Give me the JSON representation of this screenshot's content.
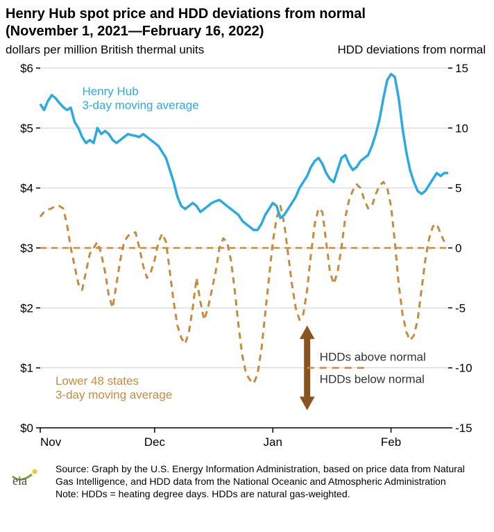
{
  "title_line1": "Henry Hub spot price and HDD deviations from normal",
  "title_line2": "(November 1, 2021—February 16, 2022)",
  "left_axis_label": "dollars per million British thermal units",
  "right_axis_label": "HDD deviations from normal",
  "footer_source": "Source: Graph by the U.S. Energy Information Administration, based on price data from Natural Gas Intelligence, and HDD data from the National Oceanic and Atmospheric Administration",
  "footer_note": "Note: HDDs = heating degree days. HDDs are natural gas-weighted.",
  "annotations": {
    "henry_hub_l1": "Henry Hub",
    "henry_hub_l2": "3-day moving average",
    "lower48_l1": "Lower 48 states",
    "lower48_l2": "3-day moving average",
    "hdd_above": "HDDs above normal",
    "hdd_below": "HDDs below normal"
  },
  "colors": {
    "henry_hub": "#29abe2",
    "hdd": "#c98a3c",
    "arrow": "#8a541e",
    "grid": "#cfcfcf",
    "axis": "#000000",
    "text": "#000000",
    "bg": "#ffffff"
  },
  "styles": {
    "henry_hub_line_width": 3.5,
    "hdd_line_width": 3.0,
    "hdd_dash": "9 7",
    "zero_line_dash": "9 7",
    "tick_fontsize": 17,
    "title_fontsize": 20,
    "annotation_fontsize": 17,
    "footer_fontsize": 14
  },
  "x_axis": {
    "ticks": [
      "Nov",
      "Dec",
      "Jan",
      "Feb"
    ],
    "tick_positions_days": [
      0,
      30,
      61,
      92
    ],
    "range_days": [
      0,
      107
    ]
  },
  "left_y_axis": {
    "ticks": [
      "$0",
      "$1",
      "$2",
      "$3",
      "$4",
      "$5",
      "$6"
    ],
    "tick_values": [
      0,
      1,
      2,
      3,
      4,
      5,
      6
    ],
    "range": [
      0,
      6
    ]
  },
  "right_y_axis": {
    "ticks": [
      "-15",
      "-10",
      "-5",
      "0",
      "5",
      "10",
      "15"
    ],
    "tick_values": [
      -15,
      -10,
      -5,
      0,
      5,
      10,
      15
    ],
    "range": [
      -15,
      15
    ]
  },
  "series": {
    "henry_hub": {
      "type": "line",
      "axis": "left",
      "data": [
        [
          0,
          5.4
        ],
        [
          1,
          5.3
        ],
        [
          2,
          5.45
        ],
        [
          3,
          5.55
        ],
        [
          4,
          5.5
        ],
        [
          5,
          5.42
        ],
        [
          6,
          5.35
        ],
        [
          7,
          5.3
        ],
        [
          8,
          5.34
        ],
        [
          9,
          5.1
        ],
        [
          10,
          5.0
        ],
        [
          11,
          4.85
        ],
        [
          12,
          4.75
        ],
        [
          13,
          4.8
        ],
        [
          14,
          4.75
        ],
        [
          15,
          5.0
        ],
        [
          16,
          4.9
        ],
        [
          17,
          4.95
        ],
        [
          18,
          4.9
        ],
        [
          19,
          4.8
        ],
        [
          20,
          4.75
        ],
        [
          21,
          4.8
        ],
        [
          22,
          4.85
        ],
        [
          23,
          4.9
        ],
        [
          24,
          4.88
        ],
        [
          25,
          4.87
        ],
        [
          26,
          4.85
        ],
        [
          27,
          4.9
        ],
        [
          28,
          4.85
        ],
        [
          29,
          4.8
        ],
        [
          30,
          4.75
        ],
        [
          31,
          4.7
        ],
        [
          32,
          4.6
        ],
        [
          33,
          4.5
        ],
        [
          34,
          4.3
        ],
        [
          35,
          4.1
        ],
        [
          36,
          3.85
        ],
        [
          37,
          3.7
        ],
        [
          38,
          3.65
        ],
        [
          39,
          3.7
        ],
        [
          40,
          3.75
        ],
        [
          41,
          3.7
        ],
        [
          42,
          3.6
        ],
        [
          43,
          3.65
        ],
        [
          44,
          3.7
        ],
        [
          45,
          3.75
        ],
        [
          46,
          3.78
        ],
        [
          47,
          3.8
        ],
        [
          48,
          3.75
        ],
        [
          49,
          3.7
        ],
        [
          50,
          3.65
        ],
        [
          51,
          3.6
        ],
        [
          52,
          3.55
        ],
        [
          53,
          3.45
        ],
        [
          54,
          3.4
        ],
        [
          55,
          3.35
        ],
        [
          56,
          3.3
        ],
        [
          57,
          3.3
        ],
        [
          58,
          3.4
        ],
        [
          59,
          3.55
        ],
        [
          60,
          3.65
        ],
        [
          61,
          3.75
        ],
        [
          62,
          3.7
        ],
        [
          63,
          3.5
        ],
        [
          64,
          3.55
        ],
        [
          65,
          3.65
        ],
        [
          66,
          3.75
        ],
        [
          67,
          3.85
        ],
        [
          68,
          4.0
        ],
        [
          69,
          4.1
        ],
        [
          70,
          4.2
        ],
        [
          71,
          4.35
        ],
        [
          72,
          4.45
        ],
        [
          73,
          4.5
        ],
        [
          74,
          4.4
        ],
        [
          75,
          4.25
        ],
        [
          76,
          4.15
        ],
        [
          77,
          4.1
        ],
        [
          78,
          4.3
        ],
        [
          79,
          4.5
        ],
        [
          80,
          4.55
        ],
        [
          81,
          4.4
        ],
        [
          82,
          4.3
        ],
        [
          83,
          4.35
        ],
        [
          84,
          4.45
        ],
        [
          85,
          4.5
        ],
        [
          86,
          4.55
        ],
        [
          87,
          4.7
        ],
        [
          88,
          4.9
        ],
        [
          89,
          5.15
        ],
        [
          90,
          5.5
        ],
        [
          91,
          5.8
        ],
        [
          92,
          5.9
        ],
        [
          93,
          5.85
        ],
        [
          94,
          5.5
        ],
        [
          95,
          5.0
        ],
        [
          96,
          4.6
        ],
        [
          97,
          4.3
        ],
        [
          98,
          4.1
        ],
        [
          99,
          3.95
        ],
        [
          100,
          3.9
        ],
        [
          101,
          3.95
        ],
        [
          102,
          4.05
        ],
        [
          103,
          4.15
        ],
        [
          104,
          4.25
        ],
        [
          105,
          4.2
        ],
        [
          106,
          4.25
        ],
        [
          107,
          4.25
        ]
      ]
    },
    "hdd": {
      "type": "line",
      "axis": "right",
      "data": [
        [
          0,
          2.6
        ],
        [
          1,
          3.0
        ],
        [
          2,
          3.2
        ],
        [
          3,
          3.3
        ],
        [
          4,
          3.5
        ],
        [
          5,
          3.5
        ],
        [
          6,
          3.3
        ],
        [
          7,
          2.0
        ],
        [
          8,
          0.0
        ],
        [
          9,
          -1.5
        ],
        [
          10,
          -3.0
        ],
        [
          11,
          -3.5
        ],
        [
          12,
          -2.0
        ],
        [
          13,
          -0.5
        ],
        [
          14,
          0.0
        ],
        [
          15,
          0.5
        ],
        [
          16,
          -0.5
        ],
        [
          17,
          -2.0
        ],
        [
          18,
          -4.0
        ],
        [
          19,
          -5.0
        ],
        [
          20,
          -3.0
        ],
        [
          21,
          -1.0
        ],
        [
          22,
          0.5
        ],
        [
          23,
          1.0
        ],
        [
          24,
          1.2
        ],
        [
          25,
          1.3
        ],
        [
          26,
          0.0
        ],
        [
          27,
          -1.5
        ],
        [
          28,
          -2.5
        ],
        [
          29,
          -2.0
        ],
        [
          30,
          -1.0
        ],
        [
          31,
          0.5
        ],
        [
          32,
          1.2
        ],
        [
          33,
          0.5
        ],
        [
          34,
          -2.0
        ],
        [
          35,
          -4.5
        ],
        [
          36,
          -6.5
        ],
        [
          37,
          -7.5
        ],
        [
          38,
          -8.0
        ],
        [
          39,
          -7.0
        ],
        [
          40,
          -5.0
        ],
        [
          41,
          -2.5
        ],
        [
          42,
          -4.5
        ],
        [
          43,
          -6.0
        ],
        [
          44,
          -5.0
        ],
        [
          45,
          -3.5
        ],
        [
          46,
          -2.0
        ],
        [
          47,
          0.0
        ],
        [
          48,
          0.8
        ],
        [
          49,
          0.5
        ],
        [
          50,
          -1.0
        ],
        [
          51,
          -3.5
        ],
        [
          52,
          -6.5
        ],
        [
          53,
          -9.0
        ],
        [
          54,
          -10.5
        ],
        [
          55,
          -11.0
        ],
        [
          56,
          -11.3
        ],
        [
          57,
          -10.5
        ],
        [
          58,
          -8.5
        ],
        [
          59,
          -5.5
        ],
        [
          60,
          -2.5
        ],
        [
          61,
          0.5
        ],
        [
          62,
          2.5
        ],
        [
          63,
          3.5
        ],
        [
          64,
          2.0
        ],
        [
          65,
          -0.5
        ],
        [
          66,
          -3.0
        ],
        [
          67,
          -5.0
        ],
        [
          68,
          -6.0
        ],
        [
          69,
          -5.5
        ],
        [
          70,
          -3.5
        ],
        [
          71,
          -0.5
        ],
        [
          72,
          2.0
        ],
        [
          73,
          3.3
        ],
        [
          74,
          3.0
        ],
        [
          75,
          0.5
        ],
        [
          76,
          -2.0
        ],
        [
          77,
          -3.0
        ],
        [
          78,
          -2.0
        ],
        [
          79,
          0.0
        ],
        [
          80,
          2.5
        ],
        [
          81,
          4.0
        ],
        [
          82,
          4.8
        ],
        [
          83,
          5.3
        ],
        [
          84,
          5.0
        ],
        [
          85,
          4.0
        ],
        [
          86,
          3.3
        ],
        [
          87,
          3.5
        ],
        [
          88,
          4.5
        ],
        [
          89,
          5.2
        ],
        [
          90,
          5.5
        ],
        [
          91,
          5.0
        ],
        [
          92,
          3.5
        ],
        [
          93,
          0.5
        ],
        [
          94,
          -3.0
        ],
        [
          95,
          -5.5
        ],
        [
          96,
          -7.0
        ],
        [
          97,
          -7.7
        ],
        [
          98,
          -7.3
        ],
        [
          99,
          -6.0
        ],
        [
          100,
          -3.5
        ],
        [
          101,
          -1.0
        ],
        [
          102,
          0.8
        ],
        [
          103,
          1.8
        ],
        [
          104,
          2.0
        ],
        [
          105,
          1.2
        ],
        [
          106,
          0.5
        ],
        [
          107,
          0.3
        ]
      ]
    }
  }
}
